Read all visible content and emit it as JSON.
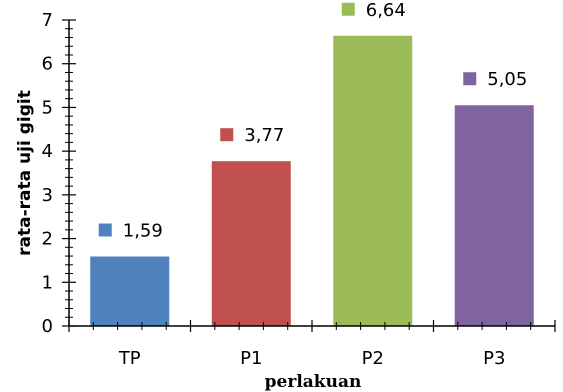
{
  "chart_data": {
    "type": "bar",
    "categories": [
      "TP",
      "P1",
      "P2",
      "P3"
    ],
    "values": [
      1.59,
      3.77,
      6.64,
      5.05
    ],
    "value_labels": [
      "1,59",
      "3,77",
      "6,64",
      "5,05"
    ],
    "colors": [
      "#4F81BD",
      "#C0504D",
      "#9BBB59",
      "#8064A2"
    ],
    "xlabel": "perlakuan",
    "ylabel": "rata-rata uji gigit",
    "ylim": [
      0,
      7
    ],
    "yticks": [
      0,
      1,
      2,
      3,
      4,
      5,
      6,
      7
    ],
    "grid": false,
    "legend": "none"
  }
}
